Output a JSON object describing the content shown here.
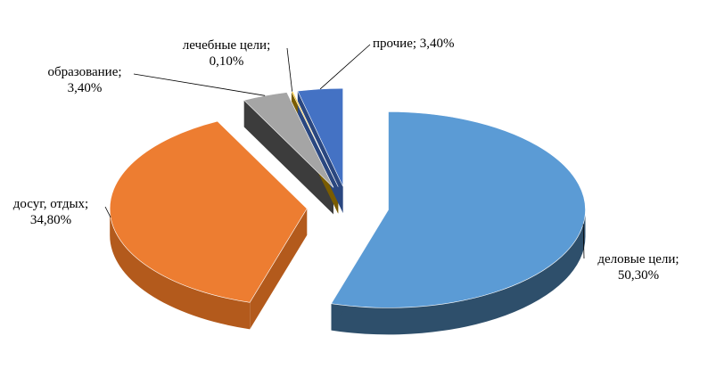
{
  "chart_data": {
    "type": "pie",
    "title": "",
    "slices": [
      {
        "name": "деловые цели;",
        "value_label": "50,30%",
        "value": 50.3,
        "color": "#5b9bd5",
        "dark": "#2e4f6b"
      },
      {
        "name": "досуг, отдых;",
        "value_label": "34,80%",
        "value": 34.8,
        "color": "#ed7d31",
        "dark": "#b35a1c"
      },
      {
        "name": "образование;",
        "value_label": "3,40%",
        "value": 3.4,
        "color": "#a5a5a5",
        "dark": "#3c3c3c"
      },
      {
        "name": "лечебные цели;",
        "value_label": "0,10%",
        "value": 0.1,
        "color": "#ffc000",
        "dark": "#7a5c00"
      },
      {
        "name": "прочие;",
        "value_label": "3,40%",
        "value": 3.4,
        "color": "#4472c4",
        "dark": "#2a4780"
      }
    ]
  }
}
